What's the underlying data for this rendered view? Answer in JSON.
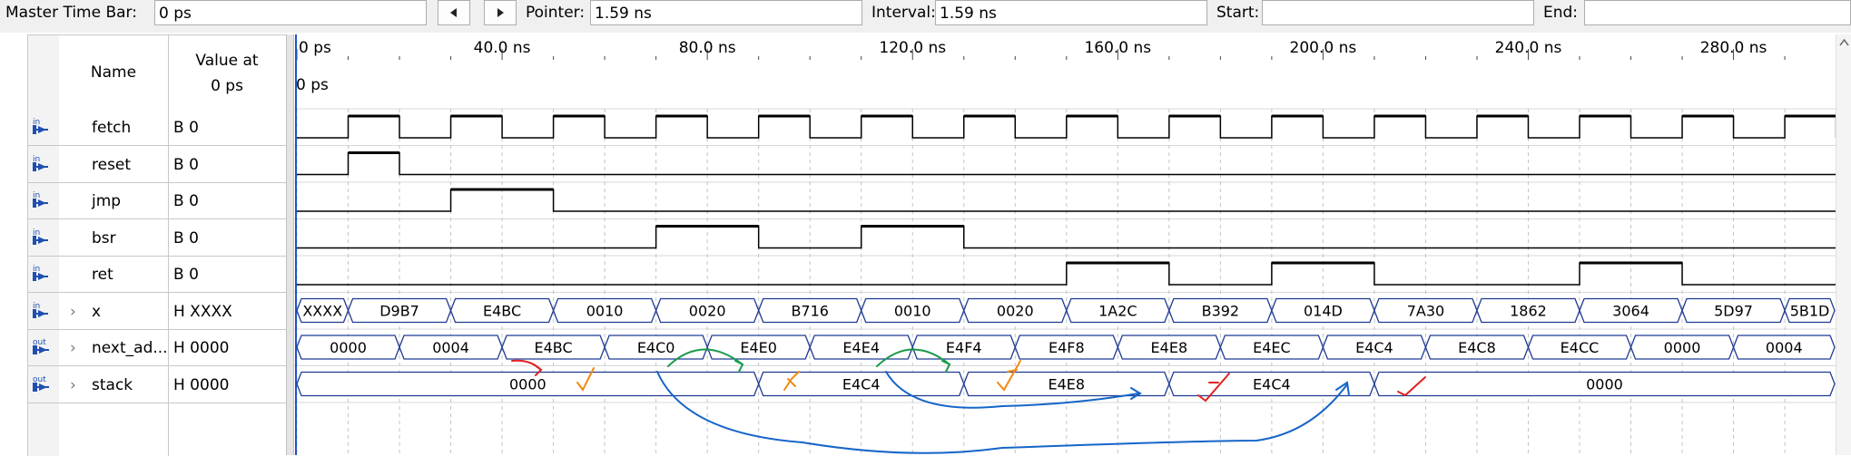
{
  "toolbar": {
    "master_label": "Master Time Bar:",
    "master_value": "0 ps",
    "pointer_label": "Pointer:",
    "pointer_value": "1.59 ns",
    "interval_label": "Interval:",
    "interval_value": "1.59 ns",
    "start_label": "Start:",
    "start_value": "",
    "end_label": "End:",
    "end_value": "",
    "prev_icon": "triangle-left-icon",
    "next_icon": "triangle-right-icon"
  },
  "headers": {
    "name": "Name",
    "value_line1": "Value at",
    "value_line2": "0 ps"
  },
  "signals": [
    {
      "dir": "in",
      "name": "fetch",
      "value": "B 0",
      "expandable": false
    },
    {
      "dir": "in",
      "name": "reset",
      "value": "B 0",
      "expandable": false
    },
    {
      "dir": "in",
      "name": "jmp",
      "value": "B 0",
      "expandable": false
    },
    {
      "dir": "in",
      "name": "bsr",
      "value": "B 0",
      "expandable": false
    },
    {
      "dir": "in",
      "name": "ret",
      "value": "B 0",
      "expandable": false
    },
    {
      "dir": "in",
      "name": "x",
      "value": "H XXXX",
      "expandable": true
    },
    {
      "dir": "out",
      "name": "next_ad...",
      "value": "H 0000",
      "expandable": true
    },
    {
      "dir": "out",
      "name": "stack",
      "value": "H 0000",
      "expandable": true
    }
  ],
  "timeline": {
    "ticks": [
      "0 ps",
      "40.0 ns",
      "80.0 ns",
      "120.0 ns",
      "160.0 ns",
      "200.0 ns",
      "240.0 ns",
      "280.0 ns"
    ],
    "cursor_label": "0 ps"
  },
  "waves": {
    "fetch": [
      [
        0,
        0
      ],
      [
        10,
        1
      ],
      [
        20,
        0
      ],
      [
        30,
        1
      ],
      [
        40,
        0
      ],
      [
        50,
        1
      ],
      [
        60,
        0
      ],
      [
        70,
        1
      ],
      [
        80,
        0
      ],
      [
        90,
        1
      ],
      [
        100,
        0
      ],
      [
        110,
        1
      ],
      [
        120,
        0
      ],
      [
        130,
        1
      ],
      [
        140,
        0
      ],
      [
        150,
        1
      ],
      [
        160,
        0
      ],
      [
        170,
        1
      ],
      [
        180,
        0
      ],
      [
        190,
        1
      ],
      [
        200,
        0
      ],
      [
        210,
        1
      ],
      [
        220,
        0
      ],
      [
        230,
        1
      ],
      [
        240,
        0
      ],
      [
        250,
        1
      ],
      [
        260,
        0
      ],
      [
        270,
        1
      ],
      [
        280,
        0
      ],
      [
        290,
        1
      ],
      [
        300,
        0
      ]
    ],
    "reset": [
      [
        0,
        0
      ],
      [
        10,
        1
      ],
      [
        20,
        0
      ]
    ],
    "jmp": [
      [
        0,
        0
      ],
      [
        30,
        1
      ],
      [
        50,
        0
      ]
    ],
    "bsr": [
      [
        0,
        0
      ],
      [
        70,
        1
      ],
      [
        90,
        0
      ],
      [
        110,
        1
      ],
      [
        130,
        0
      ]
    ],
    "ret": [
      [
        0,
        0
      ],
      [
        150,
        1
      ],
      [
        170,
        0
      ],
      [
        190,
        1
      ],
      [
        210,
        0
      ],
      [
        250,
        1
      ],
      [
        270,
        0
      ]
    ],
    "x": [
      {
        "start": 0,
        "end": 10,
        "label": "XXXX"
      },
      {
        "start": 10,
        "end": 30,
        "label": "D9B7"
      },
      {
        "start": 30,
        "end": 50,
        "label": "E4BC"
      },
      {
        "start": 50,
        "end": 70,
        "label": "0010"
      },
      {
        "start": 70,
        "end": 90,
        "label": "0020"
      },
      {
        "start": 90,
        "end": 110,
        "label": "B716"
      },
      {
        "start": 110,
        "end": 130,
        "label": "0010"
      },
      {
        "start": 130,
        "end": 150,
        "label": "0020"
      },
      {
        "start": 150,
        "end": 170,
        "label": "1A2C"
      },
      {
        "start": 170,
        "end": 190,
        "label": "B392"
      },
      {
        "start": 190,
        "end": 210,
        "label": "014D"
      },
      {
        "start": 210,
        "end": 230,
        "label": "7A30"
      },
      {
        "start": 230,
        "end": 250,
        "label": "1862"
      },
      {
        "start": 250,
        "end": 270,
        "label": "3064"
      },
      {
        "start": 270,
        "end": 290,
        "label": "5D97"
      },
      {
        "start": 290,
        "end": 300,
        "label": "5B1D"
      }
    ],
    "next_addr": [
      {
        "start": 0,
        "end": 20,
        "label": "0000"
      },
      {
        "start": 20,
        "end": 40,
        "label": "0004"
      },
      {
        "start": 40,
        "end": 60,
        "label": "E4BC"
      },
      {
        "start": 60,
        "end": 80,
        "label": "E4C0"
      },
      {
        "start": 80,
        "end": 100,
        "label": "E4E0"
      },
      {
        "start": 100,
        "end": 120,
        "label": "E4E4"
      },
      {
        "start": 120,
        "end": 140,
        "label": "E4F4"
      },
      {
        "start": 140,
        "end": 160,
        "label": "E4F8"
      },
      {
        "start": 160,
        "end": 180,
        "label": "E4E8"
      },
      {
        "start": 180,
        "end": 200,
        "label": "E4EC"
      },
      {
        "start": 200,
        "end": 220,
        "label": "E4C4"
      },
      {
        "start": 220,
        "end": 240,
        "label": "E4C8"
      },
      {
        "start": 240,
        "end": 260,
        "label": "E4CC"
      },
      {
        "start": 260,
        "end": 280,
        "label": "0000"
      },
      {
        "start": 280,
        "end": 300,
        "label": "0004"
      }
    ],
    "stack": [
      {
        "start": 0,
        "end": 90,
        "label": "0000"
      },
      {
        "start": 90,
        "end": 130,
        "label": "E4C4"
      },
      {
        "start": 130,
        "end": 170,
        "label": "E4E8"
      },
      {
        "start": 170,
        "end": 210,
        "label": "E4C4"
      },
      {
        "start": 210,
        "end": 300,
        "label": "0000"
      }
    ]
  },
  "colors": {
    "bus": "#1f3a93",
    "cursor": "#2050c8",
    "annot_red": "#e02020",
    "annot_green": "#1a9a4a",
    "annot_orange": "#f08a10",
    "annot_blue": "#1565c8"
  }
}
